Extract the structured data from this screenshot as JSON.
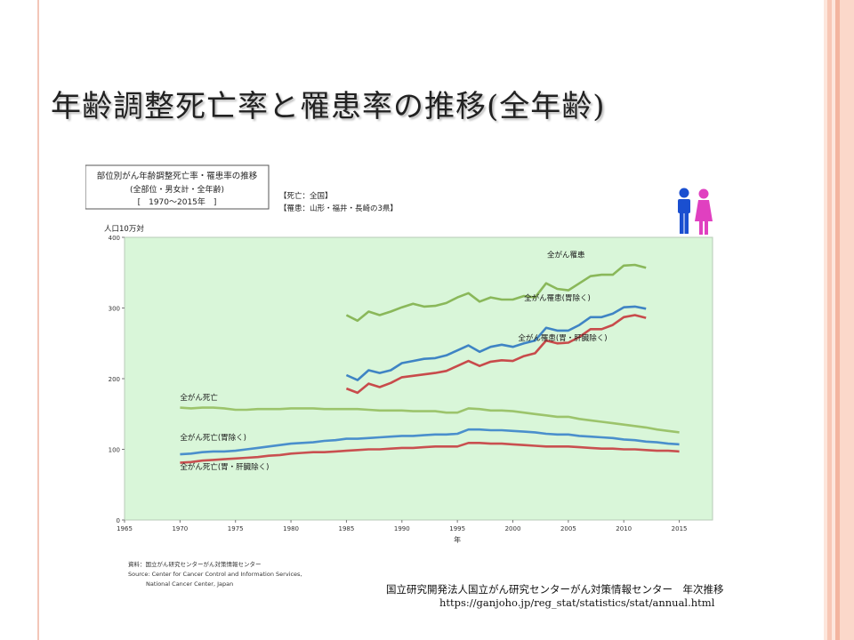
{
  "slide": {
    "title": "年齢調整死亡率と罹患率の推移(全年齢)",
    "source_line1": "国立研究開発法人国立がん研究センターがん対策情報センター　年次推移",
    "source_line2": "https://ganjoho.jp/reg_stat/statistics/stat/annual.html"
  },
  "chart_data": {
    "type": "line",
    "title_box": [
      "部位別がん年齢調整死亡率・罹患率の推移",
      "(全部位・男女計・全年齢)",
      "[　1970〜2015年　]"
    ],
    "subtitle": [
      "【死亡：全国】",
      "【罹患：山形・福井・長崎の3県】"
    ],
    "ylabel": "人口10万対",
    "xlabel": "年",
    "xlim": [
      1965,
      2018
    ],
    "ylim": [
      0,
      400
    ],
    "x_ticks": [
      1965,
      1970,
      1975,
      1980,
      1985,
      1990,
      1995,
      2000,
      2005,
      2010,
      2015
    ],
    "y_ticks": [
      0,
      100,
      200,
      300,
      400
    ],
    "grid": false,
    "plot_background": "#d9f6d9",
    "series": [
      {
        "name": "全がん罹患",
        "color": "#8ab85a",
        "x": [
          1985,
          1986,
          1987,
          1988,
          1989,
          1990,
          1991,
          1992,
          1993,
          1994,
          1995,
          1996,
          1997,
          1998,
          1999,
          2000,
          2001,
          2002,
          2003,
          2004,
          2005,
          2006,
          2007,
          2008,
          2009,
          2010,
          2011,
          2012
        ],
        "y": [
          290,
          282,
          295,
          290,
          295,
          301,
          306,
          302,
          303,
          307,
          315,
          321,
          309,
          315,
          312,
          312,
          317,
          315,
          335,
          327,
          325,
          335,
          345,
          347,
          347,
          360,
          361,
          357
        ]
      },
      {
        "name": "全がん罹患(胃除く)",
        "color": "#3f84c4",
        "x": [
          1985,
          1986,
          1987,
          1988,
          1989,
          1990,
          1991,
          1992,
          1993,
          1994,
          1995,
          1996,
          1997,
          1998,
          1999,
          2000,
          2001,
          2002,
          2003,
          2004,
          2005,
          2006,
          2007,
          2008,
          2009,
          2010,
          2011,
          2012
        ],
        "y": [
          205,
          198,
          212,
          208,
          212,
          222,
          225,
          228,
          229,
          233,
          240,
          247,
          238,
          245,
          248,
          245,
          250,
          254,
          272,
          268,
          268,
          276,
          287,
          287,
          292,
          301,
          302,
          299
        ]
      },
      {
        "name": "全がん罹患(胃・肝臓除く)",
        "color": "#c84b4b",
        "x": [
          1985,
          1986,
          1987,
          1988,
          1989,
          1990,
          1991,
          1992,
          1993,
          1994,
          1995,
          1996,
          1997,
          1998,
          1999,
          2000,
          2001,
          2002,
          2003,
          2004,
          2005,
          2006,
          2007,
          2008,
          2009,
          2010,
          2011,
          2012
        ],
        "y": [
          186,
          180,
          193,
          188,
          194,
          202,
          204,
          206,
          208,
          211,
          218,
          225,
          218,
          224,
          226,
          225,
          232,
          236,
          254,
          250,
          251,
          259,
          270,
          270,
          276,
          287,
          290,
          286
        ]
      },
      {
        "name": "全がん死亡",
        "color": "#9cc46c",
        "x": [
          1970,
          1971,
          1972,
          1973,
          1974,
          1975,
          1976,
          1977,
          1978,
          1979,
          1980,
          1981,
          1982,
          1983,
          1984,
          1985,
          1986,
          1987,
          1988,
          1989,
          1990,
          1991,
          1992,
          1993,
          1994,
          1995,
          1996,
          1997,
          1998,
          1999,
          2000,
          2001,
          2002,
          2003,
          2004,
          2005,
          2006,
          2007,
          2008,
          2009,
          2010,
          2011,
          2012,
          2013,
          2014,
          2015
        ],
        "y": [
          159,
          158,
          159,
          159,
          158,
          156,
          156,
          157,
          157,
          157,
          158,
          158,
          158,
          157,
          157,
          157,
          157,
          156,
          155,
          155,
          155,
          154,
          154,
          154,
          152,
          152,
          158,
          157,
          155,
          155,
          154,
          152,
          150,
          148,
          146,
          146,
          143,
          141,
          139,
          137,
          135,
          133,
          131,
          128,
          126,
          124
        ]
      },
      {
        "name": "全がん死亡(胃除く)",
        "color": "#4a8fcc",
        "x": [
          1970,
          1971,
          1972,
          1973,
          1974,
          1975,
          1976,
          1977,
          1978,
          1979,
          1980,
          1981,
          1982,
          1983,
          1984,
          1985,
          1986,
          1987,
          1988,
          1989,
          1990,
          1991,
          1992,
          1993,
          1994,
          1995,
          1996,
          1997,
          1998,
          1999,
          2000,
          2001,
          2002,
          2003,
          2004,
          2005,
          2006,
          2007,
          2008,
          2009,
          2010,
          2011,
          2012,
          2013,
          2014,
          2015
        ],
        "y": [
          93,
          94,
          96,
          97,
          97,
          98,
          100,
          102,
          104,
          106,
          108,
          109,
          110,
          112,
          113,
          115,
          115,
          116,
          117,
          118,
          119,
          119,
          120,
          121,
          121,
          122,
          128,
          128,
          127,
          127,
          126,
          125,
          124,
          122,
          121,
          121,
          119,
          118,
          117,
          116,
          114,
          113,
          111,
          110,
          108,
          107
        ]
      },
      {
        "name": "全がん死亡(胃・肝臓除く)",
        "color": "#c95050",
        "x": [
          1970,
          1971,
          1972,
          1973,
          1974,
          1975,
          1976,
          1977,
          1978,
          1979,
          1980,
          1981,
          1982,
          1983,
          1984,
          1985,
          1986,
          1987,
          1988,
          1989,
          1990,
          1991,
          1992,
          1993,
          1994,
          1995,
          1996,
          1997,
          1998,
          1999,
          2000,
          2001,
          2002,
          2003,
          2004,
          2005,
          2006,
          2007,
          2008,
          2009,
          2010,
          2011,
          2012,
          2013,
          2014,
          2015
        ],
        "y": [
          81,
          82,
          84,
          85,
          86,
          87,
          88,
          89,
          91,
          92,
          94,
          95,
          96,
          96,
          97,
          98,
          99,
          100,
          100,
          101,
          102,
          102,
          103,
          104,
          104,
          104,
          109,
          109,
          108,
          108,
          107,
          106,
          105,
          104,
          104,
          104,
          103,
          102,
          101,
          101,
          100,
          100,
          99,
          98,
          98,
          97
        ]
      }
    ],
    "annotations": [
      {
        "text": "全がん罹患",
        "series": 0
      },
      {
        "text": "全がん罹患(胃除く)",
        "series": 1
      },
      {
        "text": "全がん罹患(胃・肝臓除く)",
        "series": 2
      },
      {
        "text": "全がん死亡",
        "series": 3
      },
      {
        "text": "全がん死亡(胃除く)",
        "series": 4
      },
      {
        "text": "全がん死亡(胃・肝臓除く)",
        "series": 5
      }
    ],
    "credit": [
      "資料：国立がん研究センターがん対策情報センター",
      "Source: Center for Cancer Control and Information Services,",
      "National Cancer Center, Japan"
    ],
    "icon_colors": {
      "male": "#1a4fd0",
      "female": "#e040c0"
    }
  }
}
